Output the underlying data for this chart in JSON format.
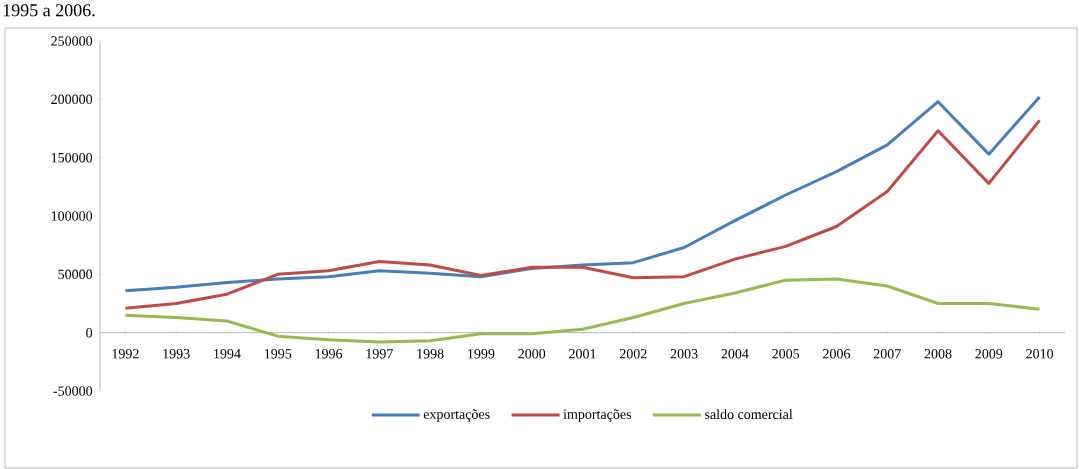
{
  "chart_data": {
    "type": "line",
    "annotations": [
      "1995 a 2006."
    ],
    "categories": [
      "1992",
      "1993",
      "1994",
      "1995",
      "1996",
      "1997",
      "1998",
      "1999",
      "2000",
      "2001",
      "2002",
      "2003",
      "2004",
      "2005",
      "2006",
      "2007",
      "2008",
      "2009",
      "2010"
    ],
    "series": [
      {
        "name": "exportações",
        "color": "#4a7ebb",
        "values": [
          36000,
          39000,
          43000,
          46000,
          48000,
          53000,
          51000,
          48000,
          55000,
          58000,
          60000,
          73000,
          96000,
          118000,
          138000,
          161000,
          198000,
          153000,
          202000
        ]
      },
      {
        "name": "importações",
        "color": "#be4b48",
        "values": [
          21000,
          25000,
          33000,
          50000,
          53000,
          61000,
          58000,
          49000,
          56000,
          56000,
          47000,
          48000,
          63000,
          74000,
          91000,
          121000,
          173000,
          128000,
          182000
        ]
      },
      {
        "name": "saldo comercial",
        "color": "#98b954",
        "values": [
          15000,
          13000,
          10000,
          -3000,
          -6000,
          -8000,
          -7000,
          -1000,
          -1000,
          3000,
          13000,
          25000,
          34000,
          45000,
          46000,
          40000,
          25000,
          25000,
          20000
        ]
      }
    ],
    "ylim": [
      -50000,
      250000
    ],
    "yticks": [
      -50000,
      0,
      50000,
      100000,
      150000,
      200000,
      250000
    ],
    "grid": false,
    "legend": "bottom",
    "marker": "none",
    "line_style": "solid"
  }
}
